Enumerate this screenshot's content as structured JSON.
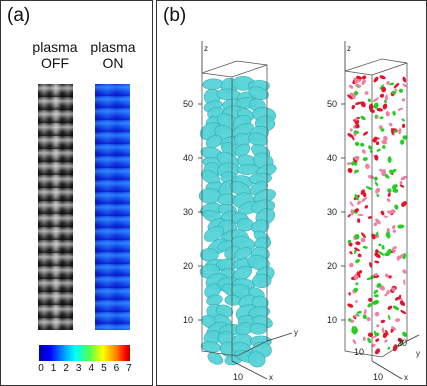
{
  "panel_a": {
    "label": "(a)",
    "columns": [
      {
        "line1": "plasma",
        "line2": "OFF"
      },
      {
        "line1": "plasma",
        "line2": "ON"
      }
    ],
    "colorbar_ticks": [
      "0",
      "1",
      "2",
      "3",
      "4",
      "5",
      "6",
      "7"
    ]
  },
  "panel_b": {
    "label": "(b)",
    "left_plot": {
      "z_label": "z",
      "y_label": "y",
      "x_label": "x",
      "z_ticks": [
        "50",
        "40",
        "30",
        "20",
        "10"
      ],
      "x_tick": "10",
      "particle_color": "#54d2d6"
    },
    "right_plot": {
      "z_label": "z",
      "y_label": "y",
      "x_label": "x",
      "z_ticks": [
        "50",
        "40",
        "30",
        "20",
        "10"
      ],
      "x_tick": "10",
      "y_ticks": [
        "10",
        "20"
      ],
      "dot_colors": [
        "#e8102a",
        "#20d020",
        "#f080a0"
      ]
    }
  }
}
